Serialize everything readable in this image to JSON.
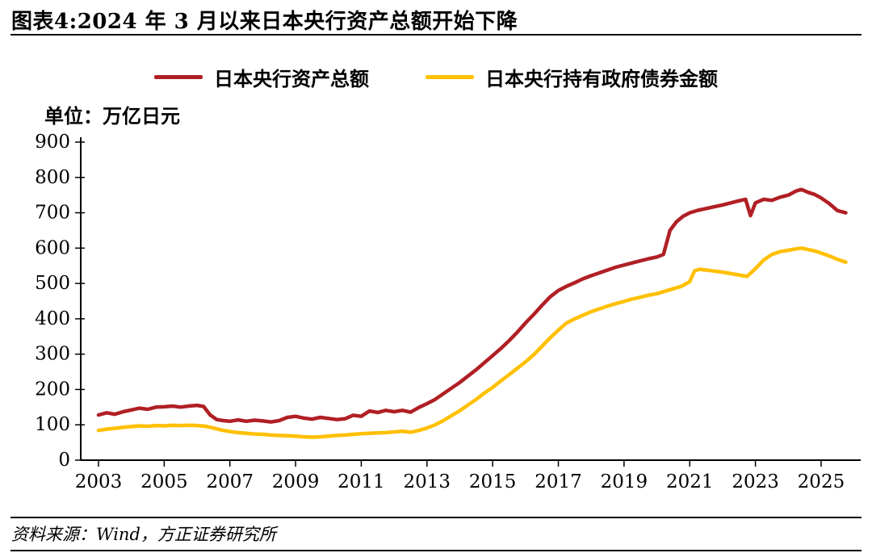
{
  "figure": {
    "title": "图表4:2024 年 3 月以来日本央行资产总额开始下降",
    "unit_label": "单位：万亿日元",
    "source_note": "资料来源：Wind，方正证券研究所"
  },
  "legend": [
    {
      "label": "日本央行资产总额",
      "color": "#b01f24"
    },
    {
      "label": "日本央行持有政府债券金额",
      "color": "#ffc000"
    }
  ],
  "chart_data": {
    "type": "line",
    "title": "2024年3月以来日本央行资产总额开始下降",
    "ylabel": "万亿日元",
    "ylim": [
      0,
      900
    ],
    "ytick_step": 100,
    "xlim": [
      2003,
      2026.2
    ],
    "xticks": [
      2003,
      2005,
      2007,
      2009,
      2011,
      2013,
      2015,
      2017,
      2019,
      2021,
      2023,
      2025
    ],
    "grid": false,
    "legend_position": "top",
    "series": [
      {
        "name": "日本央行资产总额",
        "color": "#b01f24",
        "points": [
          [
            2003,
            128
          ],
          [
            2003.25,
            134
          ],
          [
            2003.5,
            130
          ],
          [
            2003.75,
            137
          ],
          [
            2004,
            142
          ],
          [
            2004.25,
            147
          ],
          [
            2004.5,
            144
          ],
          [
            2004.75,
            150
          ],
          [
            2005,
            151
          ],
          [
            2005.25,
            153
          ],
          [
            2005.5,
            150
          ],
          [
            2005.75,
            153
          ],
          [
            2006,
            155
          ],
          [
            2006.2,
            152
          ],
          [
            2006.4,
            128
          ],
          [
            2006.6,
            115
          ],
          [
            2006.8,
            112
          ],
          [
            2007,
            110
          ],
          [
            2007.25,
            114
          ],
          [
            2007.5,
            110
          ],
          [
            2007.75,
            113
          ],
          [
            2008,
            111
          ],
          [
            2008.25,
            108
          ],
          [
            2008.5,
            112
          ],
          [
            2008.75,
            121
          ],
          [
            2009,
            124
          ],
          [
            2009.25,
            119
          ],
          [
            2009.5,
            116
          ],
          [
            2009.75,
            121
          ],
          [
            2010,
            118
          ],
          [
            2010.25,
            115
          ],
          [
            2010.5,
            117
          ],
          [
            2010.75,
            127
          ],
          [
            2011,
            124
          ],
          [
            2011.25,
            139
          ],
          [
            2011.5,
            135
          ],
          [
            2011.75,
            141
          ],
          [
            2012,
            137
          ],
          [
            2012.25,
            141
          ],
          [
            2012.5,
            136
          ],
          [
            2012.75,
            149
          ],
          [
            2013,
            160
          ],
          [
            2013.25,
            172
          ],
          [
            2013.5,
            188
          ],
          [
            2013.75,
            204
          ],
          [
            2014,
            220
          ],
          [
            2014.25,
            238
          ],
          [
            2014.5,
            256
          ],
          [
            2014.75,
            276
          ],
          [
            2015,
            296
          ],
          [
            2015.25,
            316
          ],
          [
            2015.5,
            338
          ],
          [
            2015.75,
            362
          ],
          [
            2016,
            388
          ],
          [
            2016.25,
            412
          ],
          [
            2016.5,
            438
          ],
          [
            2016.75,
            462
          ],
          [
            2017,
            480
          ],
          [
            2017.25,
            492
          ],
          [
            2017.5,
            502
          ],
          [
            2017.75,
            513
          ],
          [
            2018,
            522
          ],
          [
            2018.25,
            530
          ],
          [
            2018.5,
            538
          ],
          [
            2018.75,
            546
          ],
          [
            2019,
            552
          ],
          [
            2019.25,
            558
          ],
          [
            2019.5,
            564
          ],
          [
            2019.75,
            570
          ],
          [
            2020,
            575
          ],
          [
            2020.2,
            582
          ],
          [
            2020.4,
            650
          ],
          [
            2020.6,
            675
          ],
          [
            2020.8,
            690
          ],
          [
            2021,
            700
          ],
          [
            2021.25,
            707
          ],
          [
            2021.5,
            712
          ],
          [
            2021.75,
            717
          ],
          [
            2022,
            722
          ],
          [
            2022.25,
            728
          ],
          [
            2022.5,
            734
          ],
          [
            2022.7,
            738
          ],
          [
            2022.85,
            692
          ],
          [
            2023,
            728
          ],
          [
            2023.25,
            738
          ],
          [
            2023.5,
            735
          ],
          [
            2023.75,
            744
          ],
          [
            2024,
            750
          ],
          [
            2024.25,
            762
          ],
          [
            2024.4,
            766
          ],
          [
            2024.6,
            758
          ],
          [
            2024.8,
            752
          ],
          [
            2025,
            742
          ],
          [
            2025.25,
            726
          ],
          [
            2025.5,
            706
          ],
          [
            2025.75,
            700
          ]
        ]
      },
      {
        "name": "日本央行持有政府债券金额",
        "color": "#ffc000",
        "points": [
          [
            2003,
            84
          ],
          [
            2003.25,
            88
          ],
          [
            2003.5,
            90
          ],
          [
            2003.75,
            93
          ],
          [
            2004,
            95
          ],
          [
            2004.25,
            97
          ],
          [
            2004.5,
            96
          ],
          [
            2004.75,
            98
          ],
          [
            2005,
            97
          ],
          [
            2005.25,
            99
          ],
          [
            2005.5,
            98
          ],
          [
            2005.75,
            99
          ],
          [
            2006,
            98
          ],
          [
            2006.25,
            96
          ],
          [
            2006.5,
            91
          ],
          [
            2006.75,
            85
          ],
          [
            2007,
            81
          ],
          [
            2007.25,
            78
          ],
          [
            2007.5,
            76
          ],
          [
            2007.75,
            74
          ],
          [
            2008,
            73
          ],
          [
            2008.25,
            71
          ],
          [
            2008.5,
            70
          ],
          [
            2008.75,
            69
          ],
          [
            2009,
            68
          ],
          [
            2009.25,
            66
          ],
          [
            2009.5,
            65
          ],
          [
            2009.75,
            66
          ],
          [
            2010,
            68
          ],
          [
            2010.25,
            70
          ],
          [
            2010.5,
            71
          ],
          [
            2010.75,
            73
          ],
          [
            2011,
            75
          ],
          [
            2011.25,
            76
          ],
          [
            2011.5,
            77
          ],
          [
            2011.75,
            78
          ],
          [
            2012,
            80
          ],
          [
            2012.25,
            82
          ],
          [
            2012.5,
            79
          ],
          [
            2012.75,
            84
          ],
          [
            2013,
            91
          ],
          [
            2013.25,
            100
          ],
          [
            2013.5,
            112
          ],
          [
            2013.75,
            126
          ],
          [
            2014,
            140
          ],
          [
            2014.25,
            156
          ],
          [
            2014.5,
            172
          ],
          [
            2014.75,
            190
          ],
          [
            2015,
            206
          ],
          [
            2015.25,
            224
          ],
          [
            2015.5,
            242
          ],
          [
            2015.75,
            260
          ],
          [
            2016,
            278
          ],
          [
            2016.25,
            298
          ],
          [
            2016.5,
            322
          ],
          [
            2016.75,
            346
          ],
          [
            2017,
            368
          ],
          [
            2017.25,
            388
          ],
          [
            2017.5,
            400
          ],
          [
            2017.75,
            410
          ],
          [
            2018,
            420
          ],
          [
            2018.25,
            428
          ],
          [
            2018.5,
            436
          ],
          [
            2018.75,
            443
          ],
          [
            2019,
            449
          ],
          [
            2019.25,
            456
          ],
          [
            2019.5,
            461
          ],
          [
            2019.75,
            467
          ],
          [
            2020,
            471
          ],
          [
            2020.25,
            478
          ],
          [
            2020.5,
            485
          ],
          [
            2020.75,
            492
          ],
          [
            2021,
            505
          ],
          [
            2021.15,
            536
          ],
          [
            2021.3,
            540
          ],
          [
            2021.5,
            538
          ],
          [
            2021.75,
            535
          ],
          [
            2022,
            532
          ],
          [
            2022.25,
            528
          ],
          [
            2022.5,
            524
          ],
          [
            2022.75,
            520
          ],
          [
            2023,
            542
          ],
          [
            2023.25,
            566
          ],
          [
            2023.5,
            582
          ],
          [
            2023.75,
            590
          ],
          [
            2024,
            594
          ],
          [
            2024.25,
            598
          ],
          [
            2024.4,
            600
          ],
          [
            2024.6,
            596
          ],
          [
            2024.8,
            592
          ],
          [
            2025,
            586
          ],
          [
            2025.25,
            578
          ],
          [
            2025.5,
            568
          ],
          [
            2025.75,
            560
          ]
        ]
      }
    ]
  }
}
